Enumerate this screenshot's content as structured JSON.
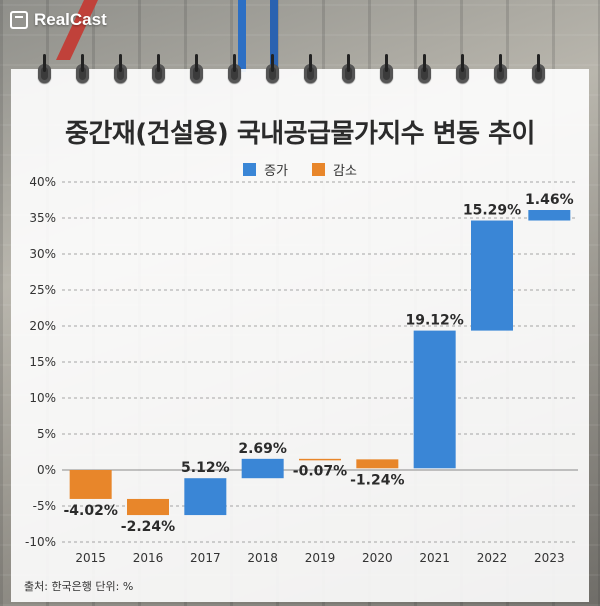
{
  "logo": {
    "text": "RealCast"
  },
  "colors": {
    "increase": "#3a86d6",
    "decrease": "#e8862a",
    "text": "#2b2b2b",
    "grid": "#8a8a8a"
  },
  "chart_data": {
    "type": "bar",
    "variant": "waterfall",
    "title": "중간재(건설용) 국내공급물가지수 변동 추이",
    "legend": [
      {
        "label": "증가",
        "color": "#3a86d6"
      },
      {
        "label": "감소",
        "color": "#e8862a"
      }
    ],
    "categories": [
      "2015",
      "2016",
      "2017",
      "2018",
      "2019",
      "2020",
      "2021",
      "2022",
      "2023"
    ],
    "values": [
      -4.02,
      -2.24,
      5.12,
      2.69,
      -0.07,
      -1.24,
      19.12,
      15.29,
      1.46
    ],
    "start": [
      0,
      -4.02,
      -6.26,
      -1.14,
      1.55,
      1.48,
      0.24,
      19.36,
      34.65
    ],
    "end": [
      -4.02,
      -6.26,
      -1.14,
      1.55,
      1.48,
      0.24,
      19.36,
      34.65,
      36.11
    ],
    "labels": [
      "-4.02%",
      "-2.24%",
      "5.12%",
      "2.69%",
      "-0.07%",
      "-1.24%",
      "19.12%",
      "15.29%",
      "1.46%"
    ],
    "yticks": [
      "-10%",
      "-5%",
      "0%",
      "5%",
      "10%",
      "15%",
      "20%",
      "25%",
      "30%",
      "35%",
      "40%"
    ],
    "ylim": [
      -10,
      40
    ],
    "grid": true,
    "legend_position": "top-center"
  },
  "footer": {
    "source": "출처: 한국은행  단위: %"
  }
}
